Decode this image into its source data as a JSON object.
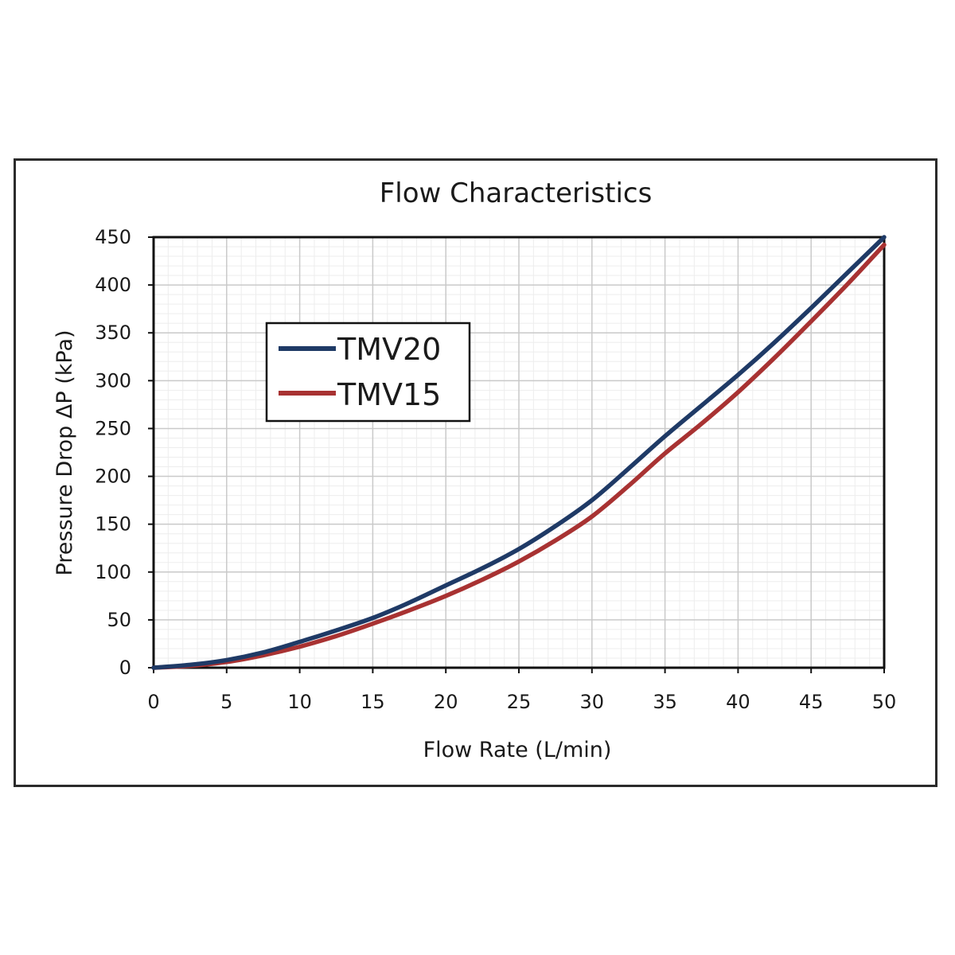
{
  "chart_data": {
    "type": "line",
    "title": "Flow Characteristics",
    "xlabel": "Flow Rate (L/min)",
    "ylabel": "Pressure Drop ΔP (kPa)",
    "xlim": [
      0,
      50
    ],
    "ylim": [
      0,
      450
    ],
    "x_ticks": [
      "0",
      "5",
      "10",
      "15",
      "20",
      "25",
      "30",
      "35",
      "40",
      "45",
      "50"
    ],
    "y_ticks": [
      "0",
      "50",
      "100",
      "150",
      "200",
      "250",
      "300",
      "350",
      "400",
      "450"
    ],
    "grid": true,
    "legend_position": "upper-left",
    "series": [
      {
        "name": "TMV20",
        "color": "#1f3a66",
        "x": [
          0,
          2.5,
          5,
          7.5,
          10,
          12.5,
          15,
          17.5,
          20,
          22.5,
          25,
          27.5,
          30,
          32.5,
          35,
          37.5,
          40,
          42.5,
          45,
          47.5,
          50
        ],
        "y": [
          0,
          3,
          8,
          16,
          27,
          39,
          52,
          68,
          86,
          104,
          124,
          148,
          175,
          208,
          242,
          274,
          306,
          340,
          376,
          413,
          450
        ]
      },
      {
        "name": "TMV15",
        "color": "#a83232",
        "x": [
          0,
          2.5,
          5,
          7.5,
          10,
          12.5,
          15,
          17.5,
          20,
          22.5,
          25,
          27.5,
          30,
          32.5,
          35,
          37.5,
          40,
          42.5,
          45,
          47.5,
          50
        ],
        "y": [
          0,
          2,
          6,
          13,
          22,
          33,
          46,
          60,
          75,
          92,
          111,
          133,
          158,
          190,
          224,
          255,
          288,
          324,
          362,
          401,
          442
        ]
      }
    ]
  }
}
